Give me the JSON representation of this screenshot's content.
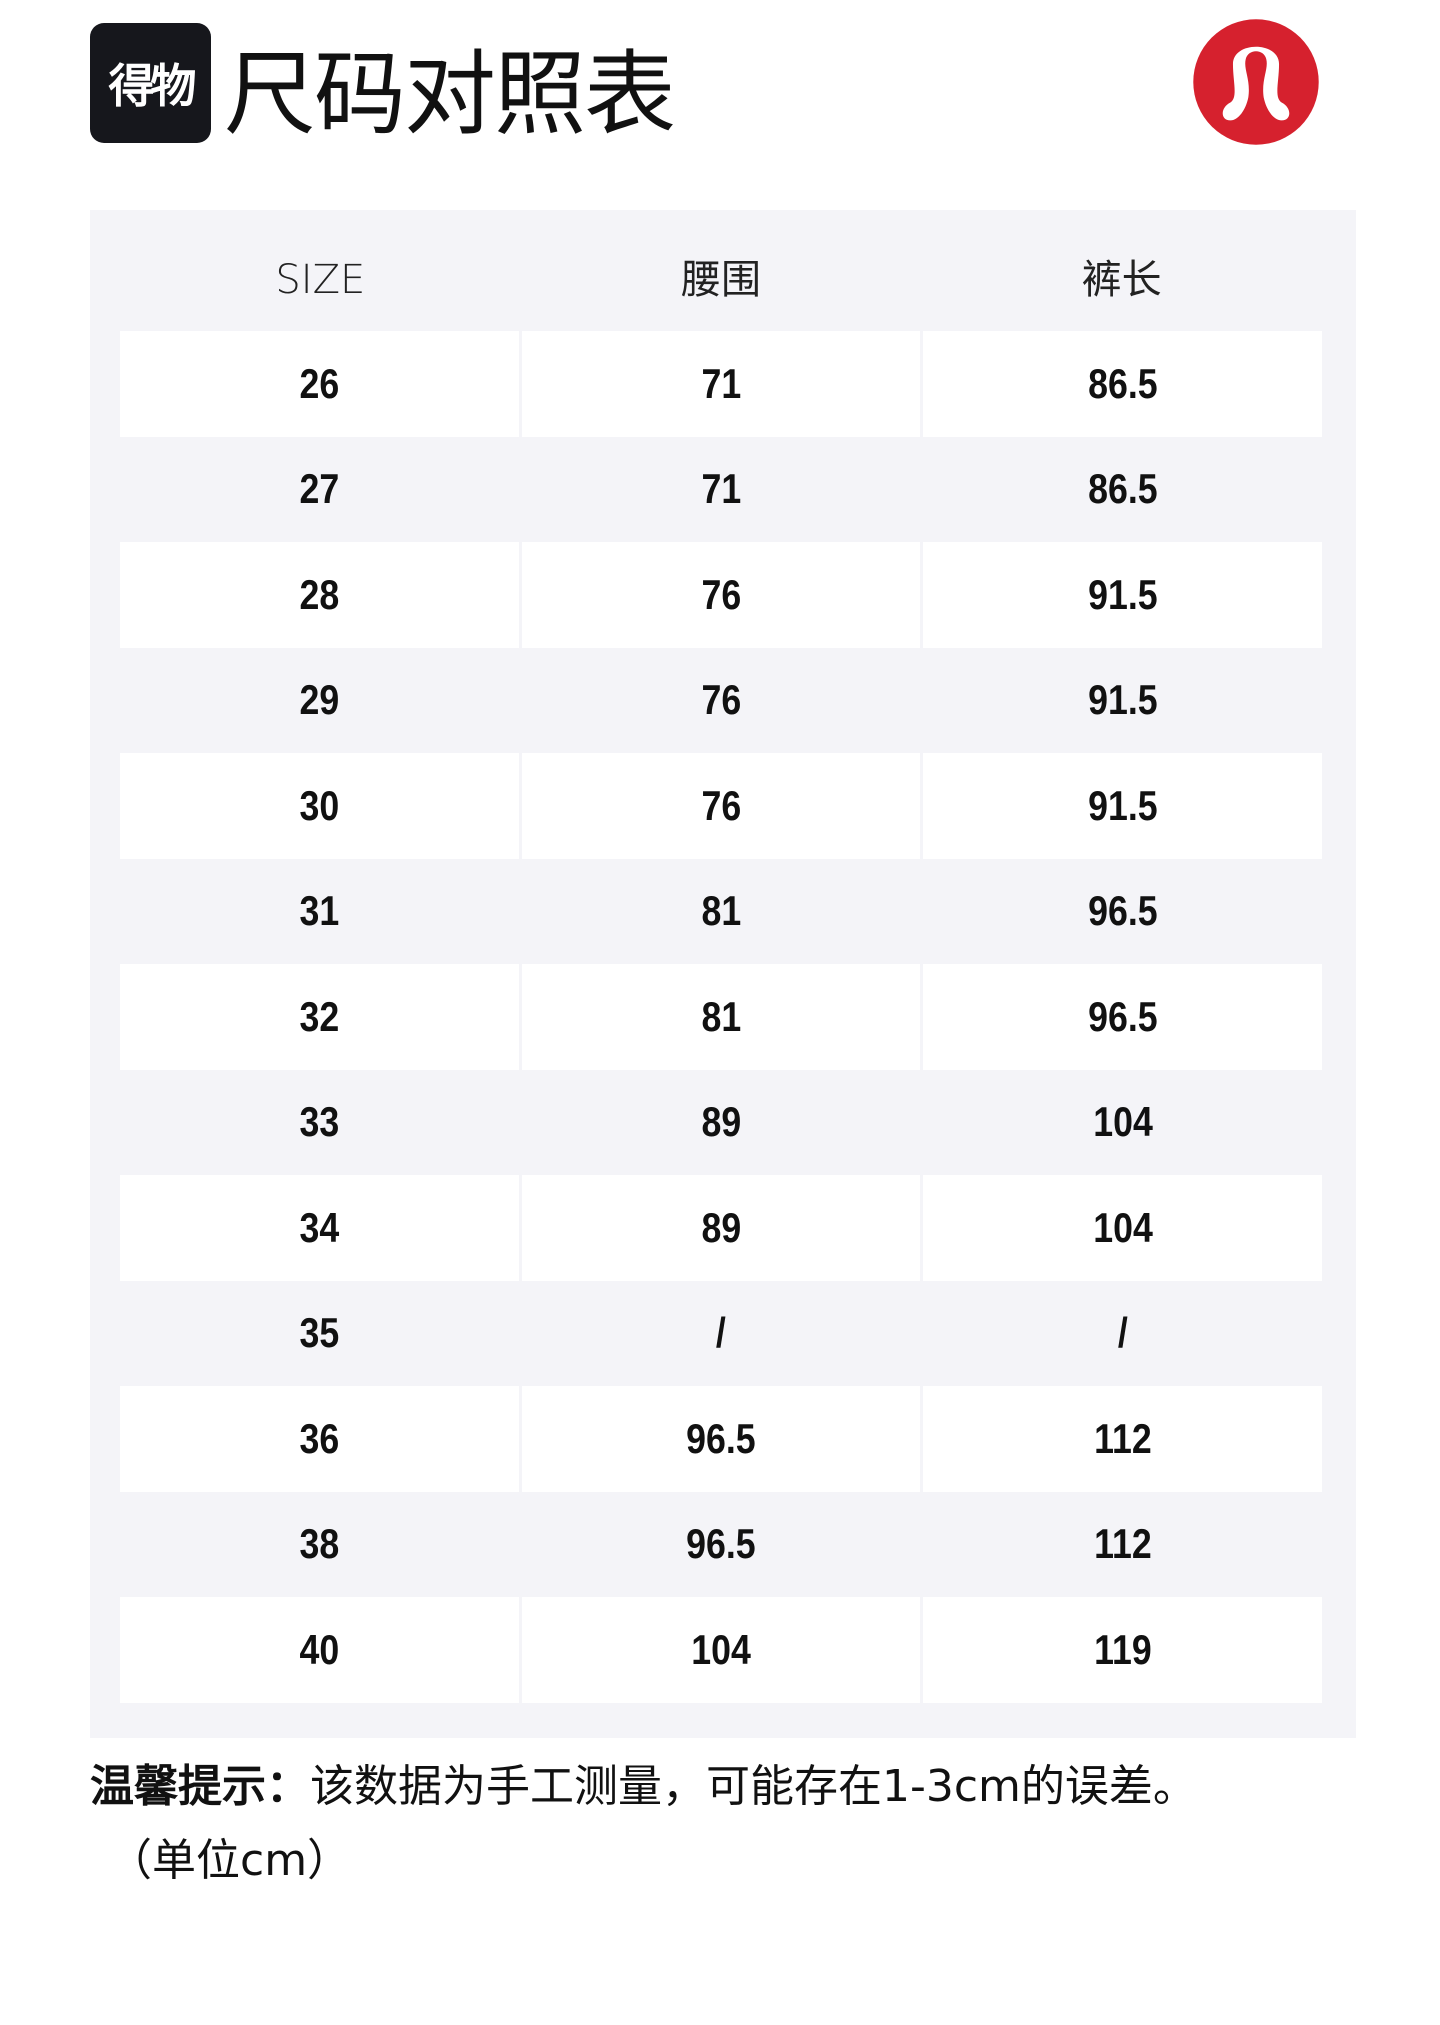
{
  "header": {
    "brand_logo_text": "得物",
    "title": "尺码对照表",
    "brand_logo_color": "#d6212e"
  },
  "table": {
    "columns": [
      "SIZE",
      "腰围",
      "裤长"
    ],
    "rows": [
      [
        "26",
        "71",
        "86.5"
      ],
      [
        "27",
        "71",
        "86.5"
      ],
      [
        "28",
        "76",
        "91.5"
      ],
      [
        "29",
        "76",
        "91.5"
      ],
      [
        "30",
        "76",
        "91.5"
      ],
      [
        "31",
        "81",
        "96.5"
      ],
      [
        "32",
        "81",
        "96.5"
      ],
      [
        "33",
        "89",
        "104"
      ],
      [
        "34",
        "89",
        "104"
      ],
      [
        "35",
        "/",
        "/"
      ],
      [
        "36",
        "96.5",
        "112"
      ],
      [
        "38",
        "96.5",
        "112"
      ],
      [
        "40",
        "104",
        "119"
      ]
    ]
  },
  "note": {
    "label": "温馨提示：",
    "text": "该数据为手工测量，可能存在1-3cm的误差。",
    "unit": "（单位cm）"
  }
}
